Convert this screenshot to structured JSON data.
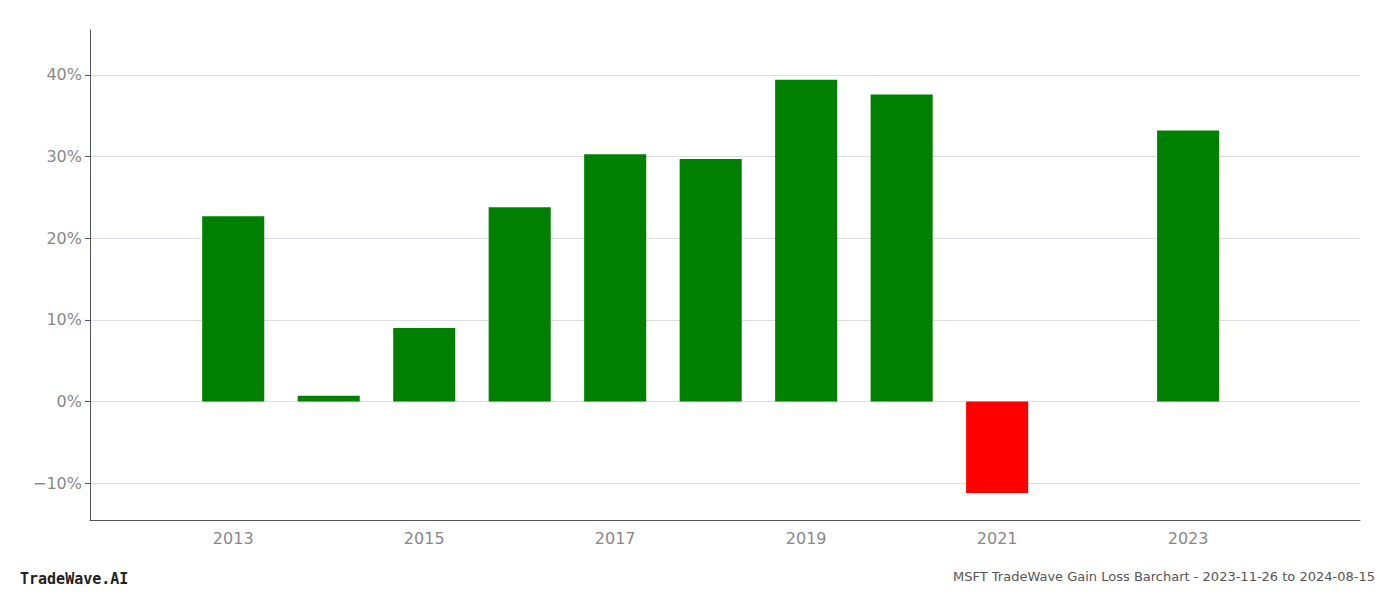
{
  "chart_data": {
    "type": "bar",
    "title": "MSFT TradeWave Gain Loss Barchart - 2023-11-26 to 2024-08-15",
    "annotations": [
      "TradeWave.AI"
    ],
    "x": [
      2013,
      2014,
      2015,
      2016,
      2017,
      2018,
      2019,
      2020,
      2021,
      2022,
      2023
    ],
    "values": [
      0.227,
      0.007,
      0.09,
      0.238,
      0.303,
      0.297,
      0.394,
      0.376,
      -0.112,
      null,
      0.332
    ],
    "colors": [
      "#008000",
      "#008000",
      "#008000",
      "#008000",
      "#008000",
      "#008000",
      "#008000",
      "#008000",
      "#ff0000",
      null,
      "#008000"
    ],
    "xlim": [
      2011.5,
      2024.8
    ],
    "xticks": [
      2013,
      2015,
      2017,
      2019,
      2021,
      2023
    ],
    "ylim": [
      -0.145,
      0.455
    ],
    "yticks": [
      {
        "value": -0.1,
        "label": "−10%"
      },
      {
        "value": 0.0,
        "label": "0%"
      },
      {
        "value": 0.1,
        "label": "10%"
      },
      {
        "value": 0.2,
        "label": "20%"
      },
      {
        "value": 0.3,
        "label": "30%"
      },
      {
        "value": 0.4,
        "label": "40%"
      }
    ],
    "grid": true
  }
}
